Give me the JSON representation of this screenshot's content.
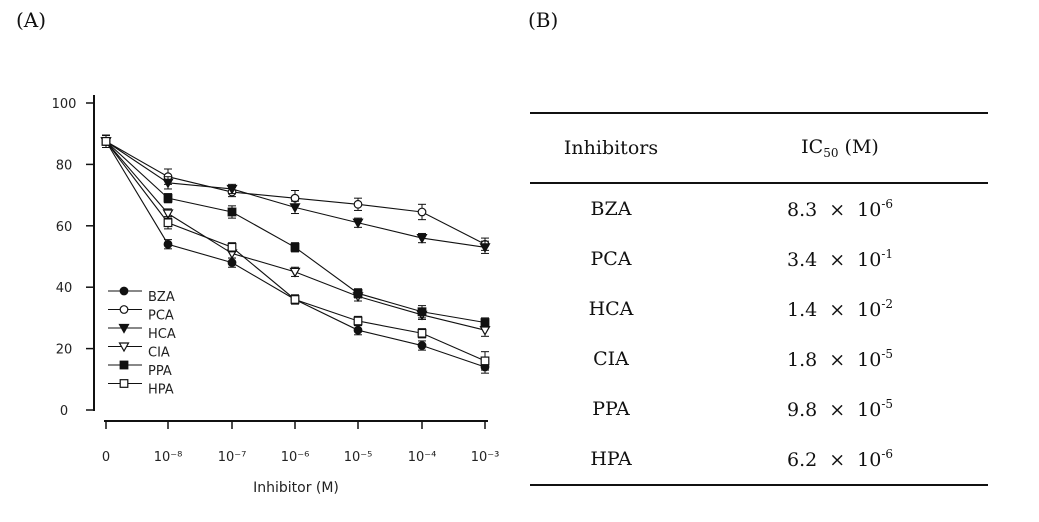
{
  "panels": {
    "a_label": "(A)",
    "b_label": "(B)"
  },
  "chart_data": {
    "type": "line",
    "title": "",
    "xlabel": "Inhibitor (M)",
    "ylabel": "",
    "x_tick_labels": [
      "0",
      "10⁻⁸",
      "10⁻⁷",
      "10⁻⁶",
      "10⁻⁵",
      "10⁻⁴",
      "10⁻³"
    ],
    "y_ticks": [
      0,
      20,
      40,
      60,
      80,
      100
    ],
    "ylim": [
      0,
      100
    ],
    "series": [
      {
        "name": "BZA",
        "marker": "filled-circle",
        "values": [
          87.5,
          54,
          48,
          36,
          26,
          21,
          14
        ],
        "errors": [
          2,
          1.5,
          1.5,
          1.5,
          1.5,
          1.5,
          2
        ]
      },
      {
        "name": "PCA",
        "marker": "open-circle",
        "values": [
          87.5,
          76,
          71,
          69,
          67,
          64.5,
          54
        ],
        "errors": [
          2,
          2.5,
          1.5,
          2.5,
          2,
          2.5,
          2
        ]
      },
      {
        "name": "HCA",
        "marker": "filled-triangle",
        "values": [
          87.5,
          74,
          72,
          66,
          61,
          56,
          53
        ],
        "errors": [
          2,
          2,
          1.5,
          2,
          1.5,
          1.5,
          2
        ]
      },
      {
        "name": "CIA",
        "marker": "open-triangle",
        "values": [
          87.5,
          64,
          51,
          45,
          37,
          31,
          26
        ],
        "errors": [
          2,
          1.5,
          1.5,
          1.5,
          1.5,
          1.5,
          2
        ]
      },
      {
        "name": "PPA",
        "marker": "filled-square",
        "values": [
          87.5,
          69,
          64.5,
          53,
          38,
          32,
          28.5
        ],
        "errors": [
          2,
          1.5,
          2,
          1.5,
          1.5,
          2,
          1.5
        ]
      },
      {
        "name": "HPA",
        "marker": "open-square",
        "values": [
          87.5,
          61,
          53,
          36,
          29,
          25,
          16
        ],
        "errors": [
          2,
          2,
          1.5,
          1.5,
          1.5,
          1.5,
          3
        ]
      }
    ]
  },
  "table": {
    "header_inhibitors": "Inhibitors",
    "header_ic50_main": "IC",
    "header_ic50_sub": "50",
    "header_ic50_unit": " (M)",
    "rows": [
      {
        "name": "BZA",
        "mantissa": "8.3",
        "times": "×",
        "base": "10",
        "exp": "-6"
      },
      {
        "name": "PCA",
        "mantissa": "3.4",
        "times": "×",
        "base": "10",
        "exp": "-1"
      },
      {
        "name": "HCA",
        "mantissa": "1.4",
        "times": "×",
        "base": "10",
        "exp": "-2"
      },
      {
        "name": "CIA",
        "mantissa": "1.8",
        "times": "×",
        "base": "10",
        "exp": "-5"
      },
      {
        "name": "PPA",
        "mantissa": "9.8",
        "times": "×",
        "base": "10",
        "exp": "-5"
      },
      {
        "name": "HPA",
        "mantissa": "6.2",
        "times": "×",
        "base": "10",
        "exp": "-6"
      }
    ]
  }
}
